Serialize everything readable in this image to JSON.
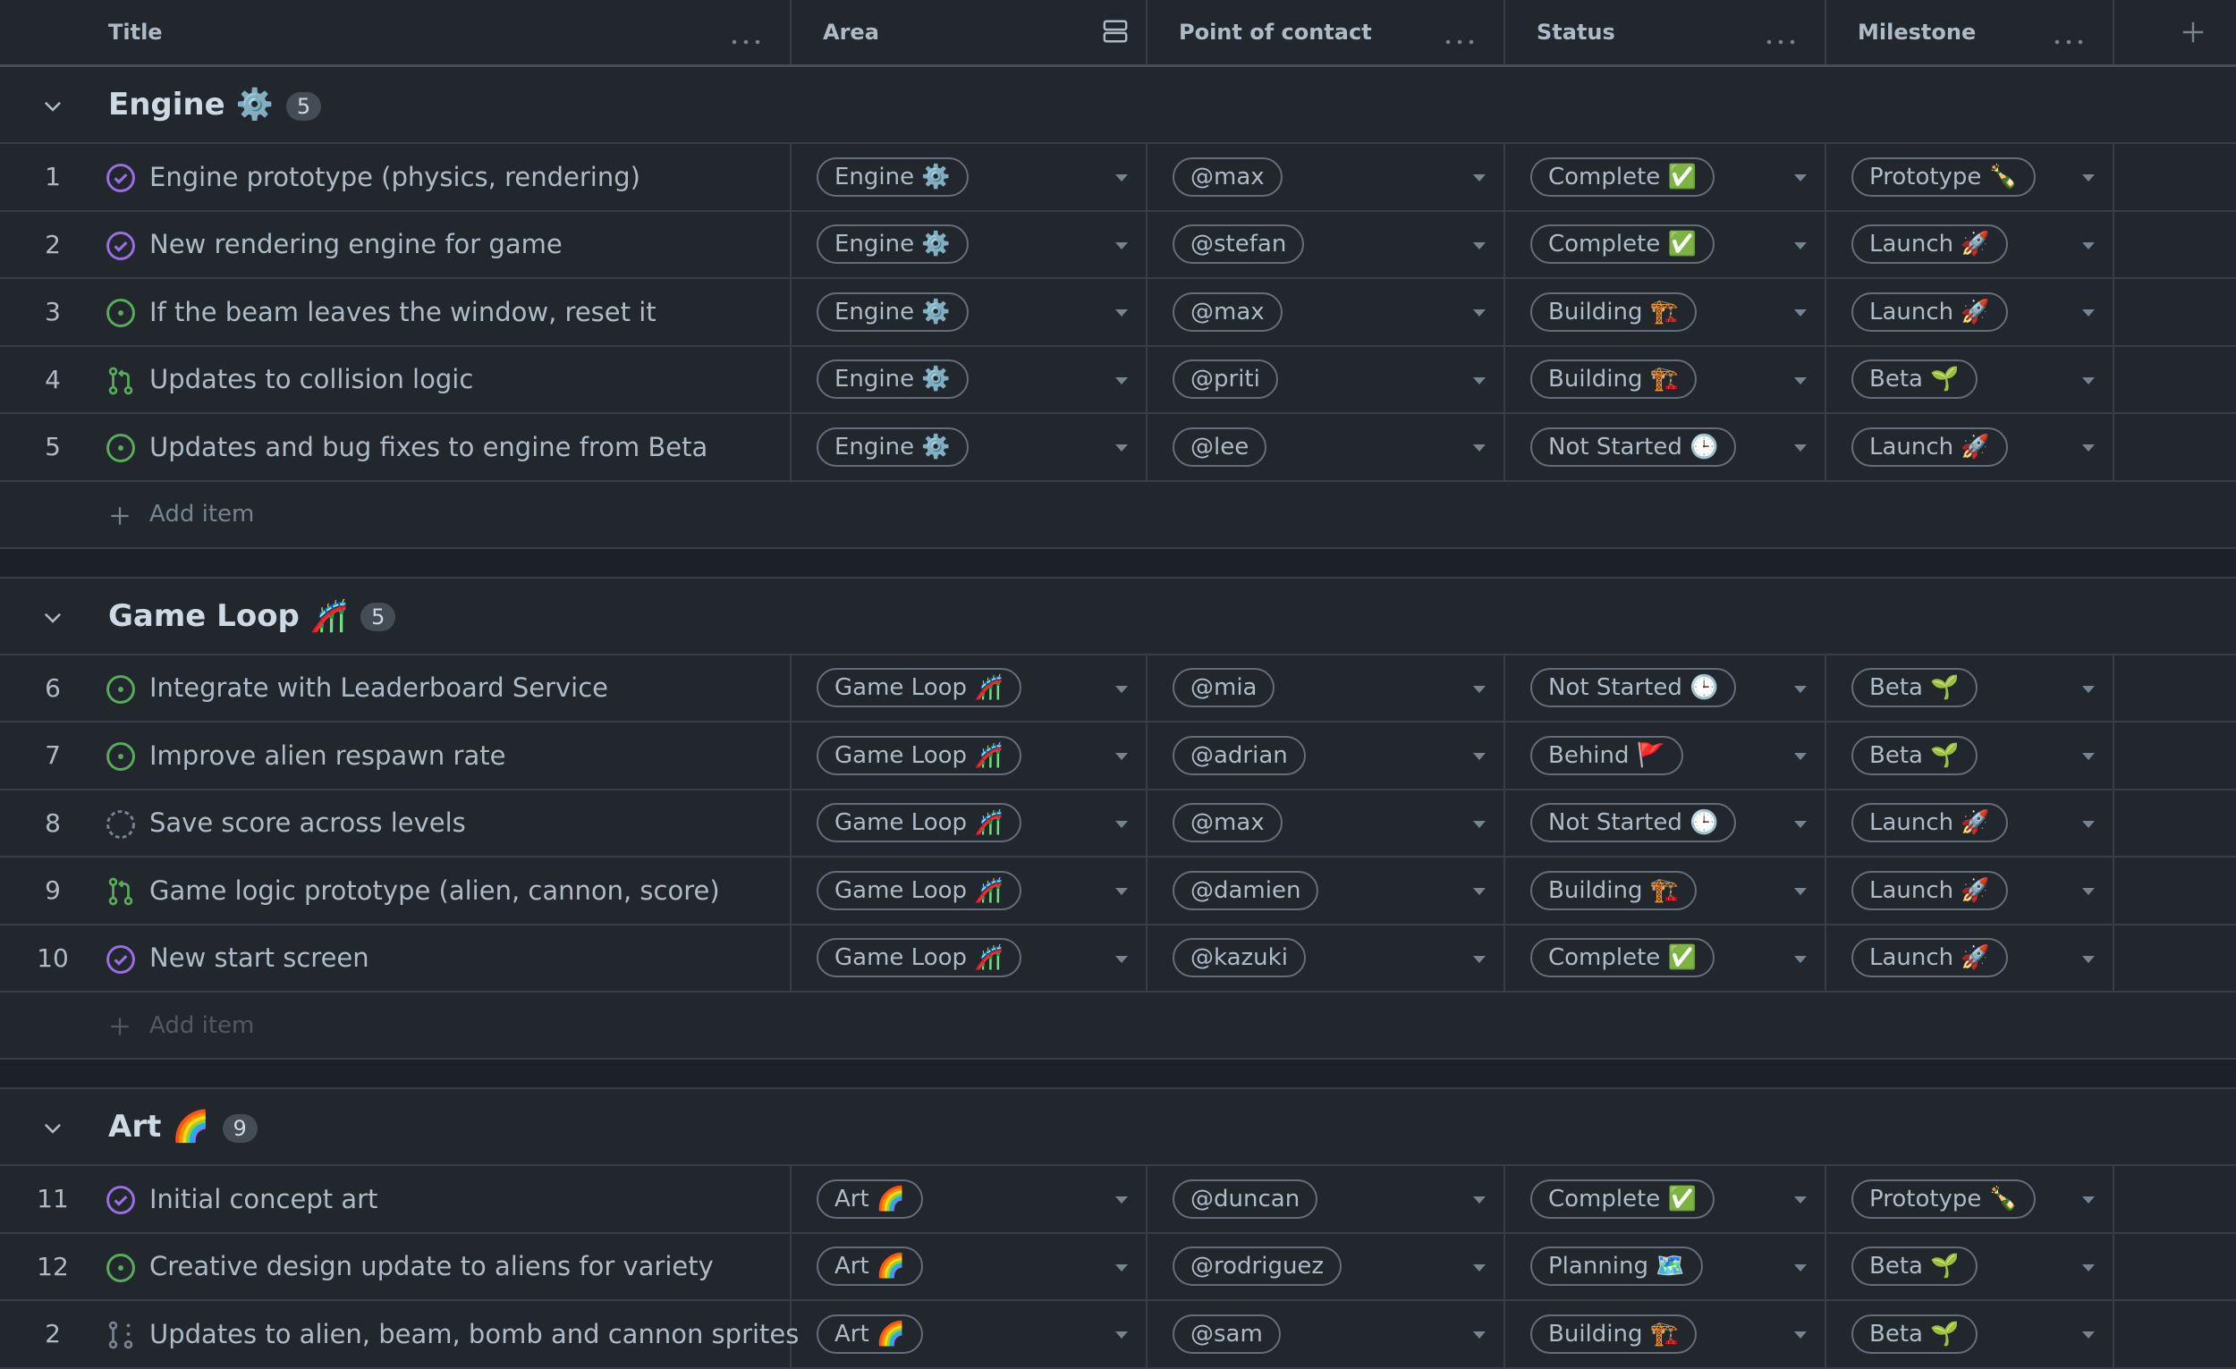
{
  "columns": [
    "Title",
    "Area",
    "Point of contact",
    "Status",
    "Milestone"
  ],
  "groups": [
    {
      "title": "Engine ⚙️",
      "count": 5,
      "add_item": "Add item",
      "rows": [
        {
          "number": 1,
          "title": "Engine prototype (physics, rendering)",
          "area": "Engine ⚙️",
          "contact": "@max",
          "status": "Complete ✅",
          "milestone": "Prototype 🍾"
        },
        {
          "number": 2,
          "title": "New rendering engine for game",
          "area": "Engine ⚙️",
          "contact": "@stefan",
          "status": "Complete ✅",
          "milestone": "Launch 🚀"
        },
        {
          "number": 3,
          "title": "If the beam leaves the window, reset it",
          "area": "Engine ⚙️",
          "contact": "@max",
          "status": "Building 🏗️",
          "milestone": "Launch 🚀"
        },
        {
          "number": 4,
          "title": "Updates to collision logic",
          "area": "Engine ⚙️",
          "contact": "@priti",
          "status": "Building 🏗️",
          "milestone": "Beta 🌱"
        },
        {
          "number": 5,
          "title": "Updates and bug fixes to engine from Beta",
          "area": "Engine ⚙️",
          "contact": "@lee",
          "status": "Not Started 🕒",
          "milestone": "Launch 🚀"
        }
      ]
    },
    {
      "title": "Game Loop 🎢",
      "count": 5,
      "add_item": "Add item",
      "rows": [
        {
          "number": 6,
          "title": "Integrate with Leaderboard Service",
          "area": "Game Loop 🎢",
          "contact": "@mia",
          "status": "Not Started 🕒",
          "milestone": "Beta 🌱"
        },
        {
          "number": 7,
          "title": "Improve alien respawn rate",
          "area": "Game Loop 🎢",
          "contact": "@adrian",
          "status": "Behind 🚩",
          "milestone": "Beta 🌱"
        },
        {
          "number": 8,
          "title": "Save score across levels",
          "area": "Game Loop 🎢",
          "contact": "@max",
          "status": "Not Started 🕒",
          "milestone": "Launch 🚀"
        },
        {
          "number": 9,
          "title": "Game logic prototype (alien, cannon, score)",
          "area": "Game Loop 🎢",
          "contact": "@damien",
          "status": "Building 🏗️",
          "milestone": "Launch 🚀"
        },
        {
          "number": 10,
          "title": "New start screen",
          "area": "Game Loop 🎢",
          "contact": "@kazuki",
          "status": "Complete ✅",
          "milestone": "Launch 🚀"
        }
      ]
    },
    {
      "title": "Art 🌈",
      "count": 9,
      "rows": [
        {
          "number": 11,
          "title": "Initial concept art",
          "area": "Art 🌈",
          "contact": "@duncan",
          "status": "Complete ✅",
          "milestone": "Prototype 🍾"
        },
        {
          "number": 12,
          "title": "Creative design update to aliens for variety",
          "area": "Art 🌈",
          "contact": "@rodriguez",
          "status": "Planning 🗺️",
          "milestone": "Beta 🌱"
        },
        {
          "number": 2,
          "title": "Updates to alien, beam, bomb and cannon sprites",
          "area": "Art 🌈",
          "contact": "@sam",
          "status": "Building 🏗️",
          "milestone": "Beta 🌱"
        }
      ]
    }
  ]
}
